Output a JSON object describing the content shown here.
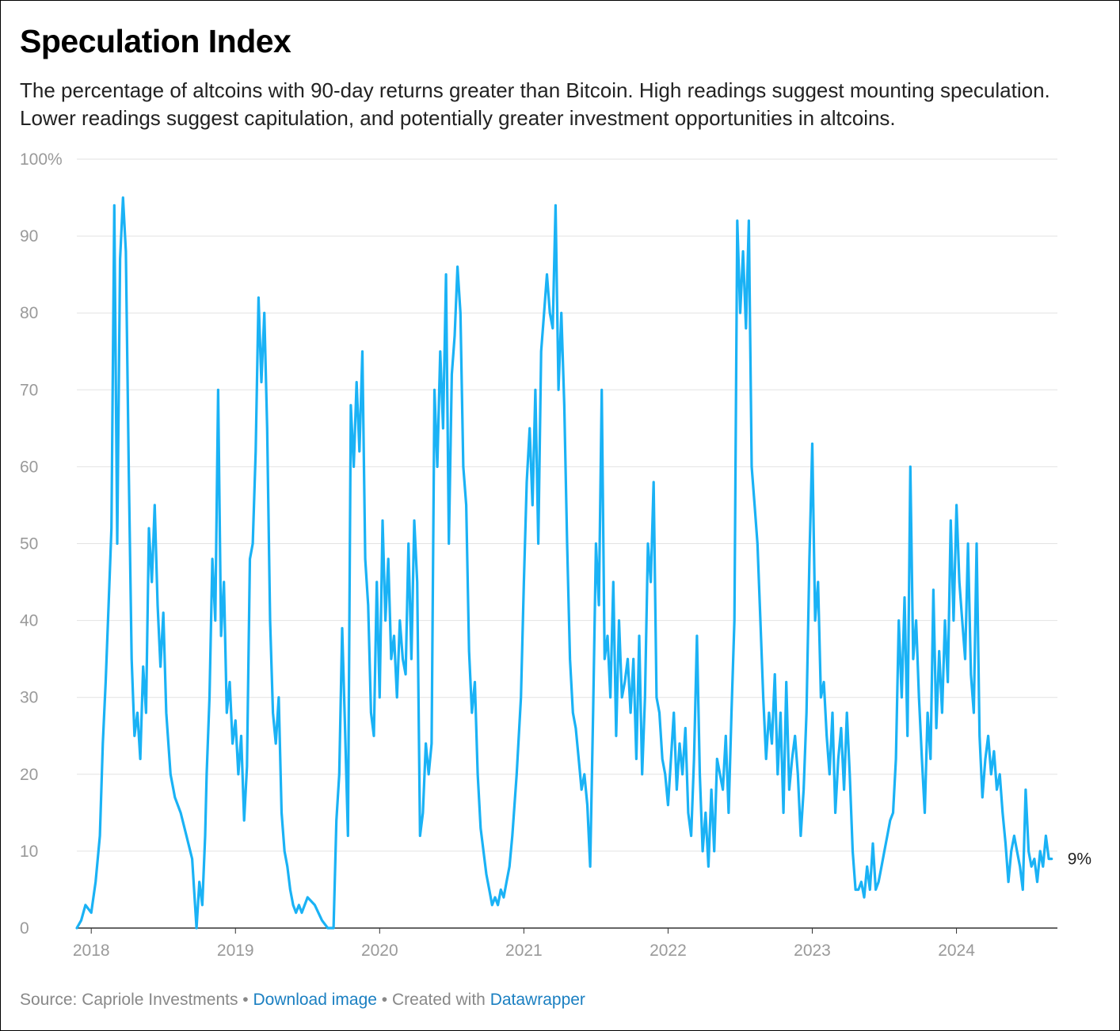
{
  "footer": {
    "source": "Source: Capriole Investments",
    "sep": " • ",
    "download": "Download image",
    "created_with": "Created with",
    "tool": "Datawrapper"
  },
  "chart_data": {
    "type": "line",
    "title": "Speculation Index",
    "subtitle": "The percentage of altcoins with 90-day returns greater than Bitcoin. High readings suggest mounting speculation. Lower readings suggest capitulation, and potentially greater investment opportunities in altcoins.",
    "xlabel": "",
    "ylabel": "",
    "x_unit": "year",
    "xlim": [
      2017.9,
      2024.7
    ],
    "ylim": [
      0,
      100
    ],
    "y_ticks": [
      0,
      10,
      20,
      30,
      40,
      50,
      60,
      70,
      80,
      90,
      100
    ],
    "y_tick_labels": [
      "0",
      "10",
      "20",
      "30",
      "40",
      "50",
      "60",
      "70",
      "80",
      "90",
      "100%"
    ],
    "x_ticks": [
      2018,
      2019,
      2020,
      2021,
      2022,
      2023,
      2024
    ],
    "x_tick_labels": [
      "2018",
      "2019",
      "2020",
      "2021",
      "2022",
      "2023",
      "2024"
    ],
    "grid": true,
    "line_color": "#1ab2f5",
    "end_label": "9%",
    "series": [
      {
        "x": [
          2017.9,
          2017.93,
          2017.96,
          2018.0,
          2018.03,
          2018.06,
          2018.08,
          2018.1,
          2018.12,
          2018.14,
          2018.16,
          2018.18,
          2018.2,
          2018.22,
          2018.24,
          2018.26,
          2018.28,
          2018.3,
          2018.32,
          2018.34,
          2018.36,
          2018.38,
          2018.4,
          2018.42,
          2018.44,
          2018.46,
          2018.48,
          2018.5,
          2018.52,
          2018.55,
          2018.58,
          2018.62,
          2018.66,
          2018.7,
          2018.73,
          2018.75,
          2018.77,
          2018.79,
          2018.8,
          2018.82,
          2018.84,
          2018.86,
          2018.88,
          2018.9,
          2018.92,
          2018.94,
          2018.96,
          2018.98,
          2019.0,
          2019.02,
          2019.04,
          2019.06,
          2019.08,
          2019.1,
          2019.12,
          2019.14,
          2019.16,
          2019.18,
          2019.2,
          2019.22,
          2019.24,
          2019.26,
          2019.28,
          2019.3,
          2019.32,
          2019.34,
          2019.36,
          2019.38,
          2019.4,
          2019.42,
          2019.44,
          2019.46,
          2019.5,
          2019.55,
          2019.6,
          2019.64,
          2019.68,
          2019.7,
          2019.72,
          2019.74,
          2019.76,
          2019.78,
          2019.8,
          2019.82,
          2019.84,
          2019.86,
          2019.88,
          2019.9,
          2019.92,
          2019.94,
          2019.96,
          2019.98,
          2020.0,
          2020.02,
          2020.04,
          2020.06,
          2020.08,
          2020.1,
          2020.12,
          2020.14,
          2020.16,
          2020.18,
          2020.2,
          2020.22,
          2020.24,
          2020.26,
          2020.28,
          2020.3,
          2020.32,
          2020.34,
          2020.36,
          2020.38,
          2020.4,
          2020.42,
          2020.44,
          2020.46,
          2020.48,
          2020.5,
          2020.52,
          2020.54,
          2020.56,
          2020.58,
          2020.6,
          2020.62,
          2020.64,
          2020.66,
          2020.68,
          2020.7,
          2020.72,
          2020.74,
          2020.76,
          2020.78,
          2020.8,
          2020.82,
          2020.84,
          2020.86,
          2020.88,
          2020.9,
          2020.92,
          2020.95,
          2020.98,
          2021.0,
          2021.02,
          2021.04,
          2021.06,
          2021.08,
          2021.1,
          2021.12,
          2021.14,
          2021.16,
          2021.18,
          2021.2,
          2021.22,
          2021.24,
          2021.26,
          2021.28,
          2021.3,
          2021.32,
          2021.34,
          2021.36,
          2021.38,
          2021.4,
          2021.42,
          2021.44,
          2021.46,
          2021.48,
          2021.5,
          2021.52,
          2021.54,
          2021.56,
          2021.58,
          2021.6,
          2021.62,
          2021.64,
          2021.66,
          2021.68,
          2021.7,
          2021.72,
          2021.74,
          2021.76,
          2021.78,
          2021.8,
          2021.82,
          2021.84,
          2021.86,
          2021.88,
          2021.9,
          2021.92,
          2021.94,
          2021.96,
          2021.98,
          2022.0,
          2022.02,
          2022.04,
          2022.06,
          2022.08,
          2022.1,
          2022.12,
          2022.14,
          2022.16,
          2022.18,
          2022.2,
          2022.22,
          2022.24,
          2022.26,
          2022.28,
          2022.3,
          2022.32,
          2022.34,
          2022.36,
          2022.38,
          2022.4,
          2022.42,
          2022.44,
          2022.46,
          2022.48,
          2022.5,
          2022.52,
          2022.54,
          2022.56,
          2022.58,
          2022.6,
          2022.62,
          2022.64,
          2022.66,
          2022.68,
          2022.7,
          2022.72,
          2022.74,
          2022.76,
          2022.78,
          2022.8,
          2022.82,
          2022.84,
          2022.86,
          2022.88,
          2022.9,
          2022.92,
          2022.94,
          2022.96,
          2022.98,
          2023.0,
          2023.02,
          2023.04,
          2023.06,
          2023.08,
          2023.1,
          2023.12,
          2023.14,
          2023.16,
          2023.18,
          2023.2,
          2023.22,
          2023.24,
          2023.26,
          2023.28,
          2023.3,
          2023.32,
          2023.34,
          2023.36,
          2023.38,
          2023.4,
          2023.42,
          2023.44,
          2023.46,
          2023.48,
          2023.5,
          2023.52,
          2023.54,
          2023.56,
          2023.58,
          2023.6,
          2023.62,
          2023.64,
          2023.66,
          2023.68,
          2023.7,
          2023.72,
          2023.74,
          2023.76,
          2023.78,
          2023.8,
          2023.82,
          2023.84,
          2023.86,
          2023.88,
          2023.9,
          2023.92,
          2023.94,
          2023.96,
          2023.98,
          2024.0,
          2024.02,
          2024.04,
          2024.06,
          2024.08,
          2024.1,
          2024.12,
          2024.14,
          2024.16,
          2024.18,
          2024.2,
          2024.22,
          2024.24,
          2024.26,
          2024.28,
          2024.3,
          2024.32,
          2024.34,
          2024.36,
          2024.38,
          2024.4,
          2024.42,
          2024.44,
          2024.46,
          2024.48,
          2024.5,
          2024.52,
          2024.54,
          2024.56,
          2024.58,
          2024.6,
          2024.62,
          2024.64,
          2024.66
        ],
        "values": [
          0,
          1,
          3,
          2,
          6,
          12,
          24,
          32,
          42,
          52,
          94,
          50,
          87,
          95,
          88,
          60,
          35,
          25,
          28,
          22,
          34,
          28,
          52,
          45,
          55,
          42,
          34,
          41,
          28,
          20,
          17,
          15,
          12,
          9,
          0,
          6,
          3,
          12,
          20,
          30,
          48,
          40,
          70,
          38,
          45,
          28,
          32,
          24,
          27,
          20,
          25,
          14,
          21,
          48,
          50,
          62,
          82,
          71,
          80,
          65,
          40,
          28,
          24,
          30,
          15,
          10,
          8,
          5,
          3,
          2,
          3,
          2,
          4,
          3,
          1,
          0,
          0,
          14,
          20,
          39,
          26,
          12,
          68,
          60,
          71,
          62,
          75,
          48,
          42,
          28,
          25,
          45,
          30,
          53,
          40,
          48,
          35,
          38,
          30,
          40,
          35,
          33,
          50,
          35,
          53,
          45,
          12,
          15,
          24,
          20,
          24,
          70,
          60,
          75,
          65,
          85,
          50,
          72,
          77,
          86,
          80,
          60,
          55,
          36,
          28,
          32,
          20,
          13,
          10,
          7,
          5,
          3,
          4,
          3,
          5,
          4,
          6,
          8,
          12,
          20,
          30,
          45,
          58,
          65,
          55,
          70,
          50,
          75,
          80,
          85,
          80,
          78,
          94,
          70,
          80,
          68,
          50,
          35,
          28,
          26,
          22,
          18,
          20,
          16,
          8,
          28,
          50,
          42,
          70,
          35,
          38,
          30,
          45,
          25,
          40,
          30,
          32,
          35,
          28,
          35,
          22,
          38,
          20,
          30,
          50,
          45,
          58,
          30,
          28,
          22,
          20,
          16,
          22,
          28,
          18,
          24,
          20,
          26,
          15,
          12,
          22,
          38,
          20,
          10,
          15,
          8,
          18,
          10,
          22,
          20,
          18,
          25,
          15,
          28,
          40,
          92,
          80,
          88,
          78,
          92,
          60,
          55,
          50,
          40,
          30,
          22,
          28,
          24,
          33,
          20,
          28,
          15,
          32,
          18,
          22,
          25,
          20,
          12,
          18,
          28,
          48,
          63,
          40,
          45,
          30,
          32,
          25,
          20,
          28,
          15,
          22,
          26,
          18,
          28,
          20,
          10,
          5,
          5,
          6,
          4,
          8,
          5,
          11,
          5,
          6,
          8,
          10,
          12,
          14,
          15,
          22,
          40,
          30,
          43,
          25,
          60,
          35,
          40,
          30,
          22,
          15,
          28,
          22,
          44,
          26,
          36,
          28,
          40,
          32,
          53,
          40,
          55,
          45,
          40,
          35,
          50,
          33,
          28,
          50,
          25,
          17,
          22,
          25,
          20,
          23,
          18,
          20,
          15,
          11,
          6,
          10,
          12,
          10,
          8,
          5,
          18,
          10,
          8,
          9,
          6,
          10,
          8,
          12,
          9,
          9
        ]
      }
    ]
  }
}
